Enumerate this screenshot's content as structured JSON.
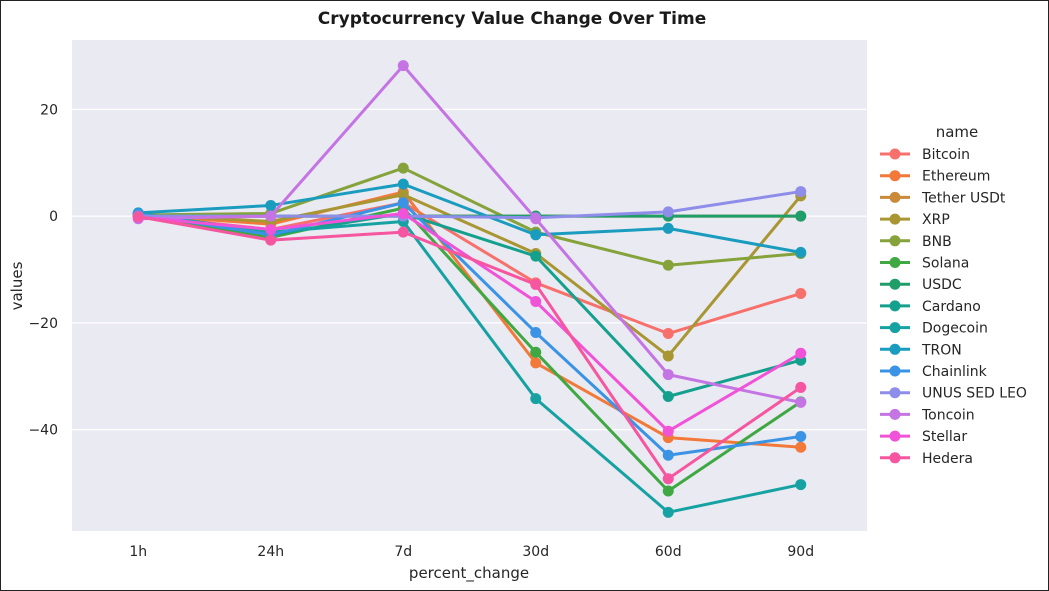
{
  "chart_data": {
    "type": "line",
    "title": "Cryptocurrency Value Change Over Time",
    "xlabel": "percent_change",
    "ylabel": "values",
    "categories": [
      "1h",
      "24h",
      "7d",
      "30d",
      "60d",
      "90d"
    ],
    "ylim": [
      -59,
      33
    ],
    "yticks": [
      20,
      0,
      -20,
      -40
    ],
    "ytick_labels": [
      "20",
      "0",
      "−20",
      "−40"
    ],
    "grid": true,
    "legend": {
      "title": "name",
      "placement": "right"
    },
    "series": [
      {
        "name": "Bitcoin",
        "color": "#f7706b",
        "values": [
          0.1,
          -2.5,
          2.5,
          -12.5,
          -22.0,
          -14.5
        ]
      },
      {
        "name": "Ethereum",
        "color": "#f2793a",
        "values": [
          0.2,
          -1.5,
          4.5,
          -27.5,
          -41.5,
          -43.3
        ]
      },
      {
        "name": "Tether USDt",
        "color": "#c98a3a",
        "values": [
          0.0,
          0.0,
          0.0,
          0.0,
          0.0,
          0.0
        ]
      },
      {
        "name": "XRP",
        "color": "#a89632",
        "values": [
          0.3,
          -1.0,
          4.0,
          -7.0,
          -26.2,
          3.8
        ]
      },
      {
        "name": "BNB",
        "color": "#86a23a",
        "values": [
          0.2,
          0.5,
          9.0,
          -3.0,
          -9.2,
          -7.0
        ]
      },
      {
        "name": "Solana",
        "color": "#3fa843",
        "values": [
          0.3,
          -4.0,
          1.5,
          -25.5,
          -51.5,
          -34.8
        ]
      },
      {
        "name": "USDC",
        "color": "#1f9e6a",
        "values": [
          0.0,
          0.0,
          0.0,
          0.0,
          0.0,
          0.0
        ]
      },
      {
        "name": "Cardano",
        "color": "#13a08d",
        "values": [
          0.4,
          -3.5,
          0.5,
          -7.5,
          -33.8,
          -27.0
        ]
      },
      {
        "name": "Dogecoin",
        "color": "#16a2a2",
        "values": [
          0.5,
          -3.0,
          -1.0,
          -34.2,
          -55.5,
          -50.3
        ]
      },
      {
        "name": "TRON",
        "color": "#1a9cbf",
        "values": [
          0.6,
          2.0,
          6.0,
          -3.5,
          -2.3,
          -6.8
        ]
      },
      {
        "name": "Chainlink",
        "color": "#3a93e4",
        "values": [
          0.4,
          -3.5,
          2.5,
          -21.8,
          -44.8,
          -41.3
        ]
      },
      {
        "name": "UNUS SED LEO",
        "color": "#8e8de9",
        "values": [
          0.0,
          0.0,
          0.0,
          -0.3,
          0.8,
          4.6
        ]
      },
      {
        "name": "Toncoin",
        "color": "#c474e3",
        "values": [
          -0.5,
          0.0,
          28.2,
          -0.5,
          -29.7,
          -34.9
        ]
      },
      {
        "name": "Stellar",
        "color": "#f052d8",
        "values": [
          -0.2,
          -2.5,
          0.5,
          -16.0,
          -40.3,
          -25.7
        ]
      },
      {
        "name": "Hedera",
        "color": "#f6559f",
        "values": [
          -0.1,
          -4.5,
          -3.0,
          -12.8,
          -49.2,
          -32.1
        ]
      }
    ]
  }
}
